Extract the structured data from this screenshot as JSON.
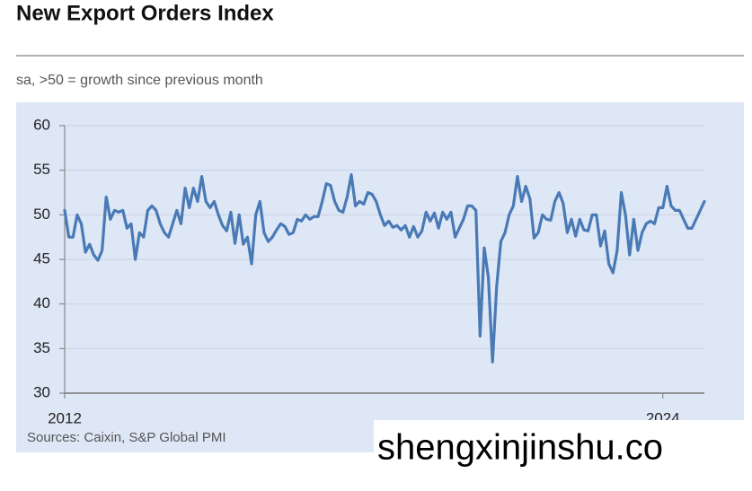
{
  "chart_data": {
    "type": "line",
    "title": "New Export Orders Index",
    "subtitle": "sa, >50 = growth since previous month",
    "source": "Sources: Caixin, S&P Global PMI",
    "watermark": "shengxinjinshu.co",
    "categories": [
      "2012",
      null,
      null,
      null,
      null,
      null,
      null,
      null,
      null,
      null,
      null,
      null,
      null,
      null,
      null,
      null,
      null,
      null,
      null,
      null,
      null,
      null,
      null,
      null,
      null,
      null,
      null,
      null,
      null,
      null,
      null,
      null,
      null,
      null,
      null,
      null,
      null,
      null,
      null,
      null,
      null,
      null,
      null,
      null,
      null,
      null,
      null,
      null,
      null,
      null,
      null,
      null,
      null,
      null,
      null,
      null,
      null,
      null,
      null,
      null,
      null,
      null,
      null,
      null,
      null,
      null,
      null,
      null,
      null,
      null,
      null,
      null,
      null,
      null,
      null,
      null,
      null,
      null,
      null,
      null,
      null,
      null,
      null,
      null,
      null,
      null,
      null,
      null,
      null,
      null,
      null,
      null,
      null,
      null,
      null,
      null,
      null,
      null,
      null,
      null,
      null,
      null,
      null,
      null,
      null,
      null,
      null,
      null,
      null,
      null,
      null,
      null,
      null,
      null,
      null,
      null,
      null,
      null,
      null,
      null,
      null,
      null,
      null,
      null,
      null,
      null,
      null,
      null,
      null,
      null,
      null,
      null,
      null,
      null,
      null,
      null,
      null,
      null,
      null,
      null,
      null,
      null,
      null,
      null,
      "2024",
      null,
      null,
      null,
      null,
      null,
      null,
      null,
      null,
      null,
      null
    ],
    "series": [
      {
        "name": "New Export Orders Index",
        "color": "#4a7ab5",
        "values": [
          50.5,
          47.5,
          47.5,
          50,
          49,
          45.8,
          46.7,
          45.5,
          44.9,
          46,
          52,
          49.5,
          50.5,
          50.3,
          50.5,
          48.5,
          49,
          45,
          48,
          47.5,
          50.5,
          51,
          50.5,
          49,
          48,
          47.5,
          49,
          50.5,
          49,
          53,
          50.8,
          53,
          51.5,
          54.3,
          51.5,
          50.8,
          51.5,
          50,
          48.8,
          48.2,
          50.3,
          46.8,
          50,
          46.7,
          47.5,
          44.5,
          50,
          51.5,
          48,
          47,
          47.5,
          48.3,
          49,
          48.7,
          47.8,
          48,
          49.5,
          49.3,
          50,
          49.5,
          49.8,
          49.8,
          51.5,
          53.5,
          53.3,
          51.5,
          50.5,
          50.3,
          52,
          54.5,
          51,
          51.5,
          51.2,
          52.5,
          52.3,
          51.5,
          50,
          48.8,
          49.3,
          48.6,
          48.8,
          48.3,
          48.8,
          47.5,
          48.7,
          47.5,
          48.2,
          50.3,
          49.3,
          50.2,
          48.5,
          50.3,
          49.5,
          50.3,
          47.5,
          48.5,
          49.5,
          51,
          51,
          50.5,
          36.4,
          46.3,
          43,
          33.5,
          42,
          47,
          48,
          50,
          51,
          54.3,
          51.5,
          53.2,
          51.8,
          47.4,
          48,
          50,
          49.5,
          49.4,
          51.5,
          52.5,
          51.3,
          48,
          49.5,
          47.6,
          49.5,
          48.3,
          48.2,
          50,
          50,
          46.5,
          48.2,
          44.5,
          43.5,
          46,
          52.5,
          50,
          45.5,
          49.5,
          46,
          48,
          49,
          49.3,
          49,
          50.8,
          50.8,
          53.2,
          51,
          50.5,
          50.5,
          49.5,
          48.5,
          48.5,
          49.5,
          50.5,
          51.5
        ]
      }
    ],
    "ylim": [
      30,
      60
    ],
    "yticks": [
      30,
      35,
      40,
      45,
      50,
      55,
      60
    ],
    "grid": true
  }
}
